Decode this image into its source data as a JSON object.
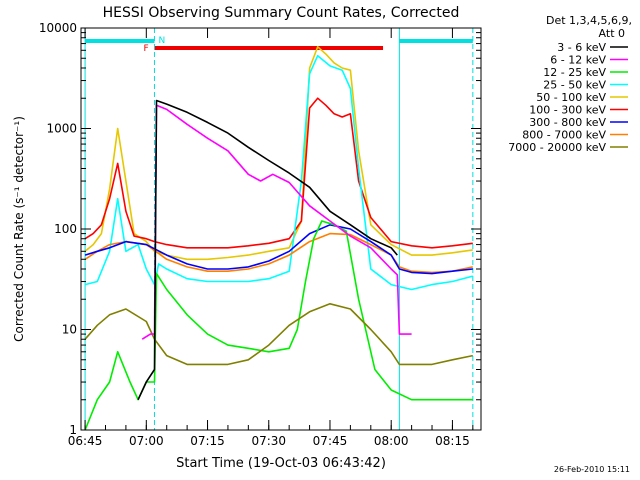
{
  "colors": {
    "c3_6": "#000000",
    "c6_12": "#ff00ff",
    "c12_25": "#00ee00",
    "c25_50": "#00ffff",
    "c50_100": "#e6c800",
    "c100_300": "#ff0000",
    "c300_800": "#0000ff",
    "c800_7000": "#ff8000",
    "c7000_20000": "#808000"
  },
  "chart_data": {
    "type": "line",
    "title": "HESSI Observing Summary Count Rates, Corrected",
    "xlabel": "Start Time (19-Oct-03 06:43:42)",
    "ylabel": "Corrected Count Rate (s⁻¹ detector⁻¹)",
    "yscale": "log",
    "xlim": [
      "06:44",
      "08:22"
    ],
    "ylim": [
      1,
      10000
    ],
    "x_ticks": [
      "06:45",
      "07:00",
      "07:15",
      "07:30",
      "07:45",
      "08:00",
      "08:15"
    ],
    "y_ticks": [
      "1",
      "10",
      "100",
      "1000",
      "10000"
    ],
    "legend_header": [
      "Det 1,3,4,5,6,9,",
      "Att 0"
    ],
    "legend_position": "right",
    "timestamp": "26-Feb-2010 15:11",
    "flag_bars": [
      {
        "label": "",
        "color": "cyan",
        "start": "06:45",
        "end": "07:02"
      },
      {
        "label": "N",
        "color": "cyan",
        "start": "07:02",
        "end": "07:02"
      },
      {
        "label": "F",
        "color": "red",
        "start": "07:02",
        "end": "07:58"
      },
      {
        "label": "",
        "color": "cyan",
        "start": "08:02",
        "end": "08:20"
      }
    ],
    "series": [
      {
        "name": "3 - 6 keV",
        "color_key": "c3_6",
        "x": [
          "06:58",
          "07:00",
          "07:02",
          "07:02.5",
          "07:05",
          "07:10",
          "07:15",
          "07:20",
          "07:25",
          "07:30",
          "07:35",
          "07:40",
          "07:45",
          "07:50",
          "07:55",
          "08:00",
          "08:01.5"
        ],
        "y": [
          2,
          3,
          4,
          1900,
          1750,
          1450,
          1150,
          900,
          650,
          480,
          360,
          260,
          150,
          110,
          80,
          65,
          55
        ]
      },
      {
        "name": "6 - 12 keV",
        "color_key": "c6_12",
        "x": [
          "06:59",
          "07:01",
          "07:02",
          "07:02.5",
          "07:05",
          "07:10",
          "07:15",
          "07:20",
          "07:25",
          "07:28",
          "07:31",
          "07:35",
          "07:40",
          "07:45",
          "07:50",
          "07:55",
          "08:00",
          "08:01.5",
          "08:02",
          "08:05"
        ],
        "y": [
          8,
          9,
          9,
          1700,
          1550,
          1100,
          800,
          600,
          350,
          300,
          350,
          290,
          170,
          120,
          85,
          65,
          40,
          35,
          9,
          9
        ]
      },
      {
        "name": "12 - 25 keV",
        "color_key": "c12_25",
        "x": [
          "06:45",
          "06:48",
          "06:51",
          "06:53",
          "06:56",
          "06:58",
          "07:00",
          "07:02",
          "07:02.5",
          "07:05",
          "07:10",
          "07:15",
          "07:20",
          "07:25",
          "07:30",
          "07:35",
          "07:37",
          "07:39",
          "07:41",
          "07:43",
          "07:46",
          "07:49",
          "07:52",
          "07:56",
          "08:00",
          "08:05",
          "08:10",
          "08:15",
          "08:20"
        ],
        "y": [
          1,
          2,
          3,
          6,
          3,
          2,
          3,
          3,
          36,
          25,
          14,
          9,
          7,
          6.5,
          6,
          6.5,
          10,
          30,
          80,
          120,
          110,
          95,
          20,
          4,
          2.5,
          2,
          2,
          2,
          2
        ]
      },
      {
        "name": "25 - 50 keV",
        "color_key": "c25_50",
        "x": [
          "06:45",
          "06:48",
          "06:51",
          "06:53",
          "06:55",
          "06:58",
          "07:00",
          "07:02",
          "07:03",
          "07:05",
          "07:10",
          "07:15",
          "07:20",
          "07:25",
          "07:30",
          "07:35",
          "07:38",
          "07:40",
          "07:42",
          "07:45",
          "07:48",
          "07:50",
          "07:52",
          "07:55",
          "08:00",
          "08:05",
          "08:10",
          "08:15",
          "08:20"
        ],
        "y": [
          28,
          30,
          60,
          200,
          60,
          70,
          40,
          28,
          45,
          40,
          32,
          30,
          30,
          30,
          32,
          38,
          300,
          3500,
          5300,
          4200,
          3800,
          2500,
          400,
          40,
          28,
          25,
          28,
          30,
          34
        ]
      },
      {
        "name": "50 - 100 keV",
        "color_key": "c50_100",
        "x": [
          "06:45",
          "06:47",
          "06:49",
          "06:51",
          "06:53",
          "06:55",
          "06:57",
          "07:00",
          "07:02",
          "07:05",
          "07:10",
          "07:15",
          "07:20",
          "07:25",
          "07:30",
          "07:35",
          "07:38",
          "07:40",
          "07:42",
          "07:44",
          "07:46",
          "07:48",
          "07:50",
          "07:52",
          "07:55",
          "08:00",
          "08:05",
          "08:10",
          "08:15",
          "08:20"
        ],
        "y": [
          60,
          70,
          90,
          250,
          1000,
          300,
          90,
          75,
          60,
          55,
          50,
          50,
          52,
          55,
          60,
          65,
          120,
          4000,
          6500,
          5500,
          4500,
          4000,
          3800,
          600,
          110,
          70,
          55,
          55,
          58,
          62
        ]
      },
      {
        "name": "100 - 300 keV",
        "color_key": "c100_300",
        "x": [
          "06:45",
          "06:47",
          "06:49",
          "06:51",
          "06:53",
          "06:55",
          "06:57",
          "07:00",
          "07:02",
          "07:05",
          "07:10",
          "07:15",
          "07:20",
          "07:25",
          "07:30",
          "07:35",
          "07:38",
          "07:40",
          "07:42",
          "07:44",
          "07:46",
          "07:48",
          "07:50",
          "07:52",
          "07:55",
          "08:00",
          "08:05",
          "08:10",
          "08:15",
          "08:20"
        ],
        "y": [
          80,
          90,
          110,
          200,
          450,
          150,
          85,
          80,
          75,
          70,
          65,
          65,
          65,
          68,
          72,
          80,
          120,
          1600,
          2000,
          1700,
          1400,
          1300,
          1400,
          300,
          130,
          75,
          68,
          65,
          68,
          72
        ]
      },
      {
        "name": "300 - 800 keV",
        "color_key": "c300_800",
        "x": [
          "06:45",
          "06:48",
          "06:51",
          "06:55",
          "07:00",
          "07:05",
          "07:10",
          "07:15",
          "07:20",
          "07:25",
          "07:30",
          "07:35",
          "07:40",
          "07:45",
          "07:50",
          "07:55",
          "08:00",
          "08:02",
          "08:05",
          "08:10",
          "08:15",
          "08:20"
        ],
        "y": [
          55,
          60,
          65,
          75,
          70,
          55,
          45,
          40,
          40,
          42,
          48,
          60,
          90,
          110,
          100,
          75,
          55,
          40,
          37,
          36,
          38,
          40
        ]
      },
      {
        "name": "800 - 7000 keV",
        "color_key": "c800_7000",
        "x": [
          "06:45",
          "06:48",
          "06:51",
          "06:55",
          "07:00",
          "07:05",
          "07:10",
          "07:15",
          "07:20",
          "07:25",
          "07:30",
          "07:35",
          "07:40",
          "07:45",
          "07:50",
          "07:55",
          "08:00",
          "08:02",
          "08:05",
          "08:10",
          "08:15",
          "08:20"
        ],
        "y": [
          50,
          60,
          70,
          75,
          70,
          50,
          42,
          38,
          38,
          40,
          45,
          55,
          75,
          90,
          88,
          70,
          55,
          42,
          38,
          37,
          38,
          42
        ]
      },
      {
        "name": "7000 - 20000 keV",
        "color_key": "c7000_20000",
        "x": [
          "06:45",
          "06:48",
          "06:51",
          "06:55",
          "07:00",
          "07:02",
          "07:05",
          "07:10",
          "07:15",
          "07:20",
          "07:25",
          "07:30",
          "07:35",
          "07:40",
          "07:45",
          "07:50",
          "07:55",
          "08:00",
          "08:02",
          "08:05",
          "08:10",
          "08:15",
          "08:20"
        ],
        "y": [
          8,
          11,
          14,
          16,
          12,
          8,
          5.5,
          4.5,
          4.5,
          4.5,
          5,
          7,
          11,
          15,
          18,
          16,
          10,
          6,
          4.5,
          4.5,
          4.5,
          5,
          5.5
        ]
      }
    ]
  }
}
